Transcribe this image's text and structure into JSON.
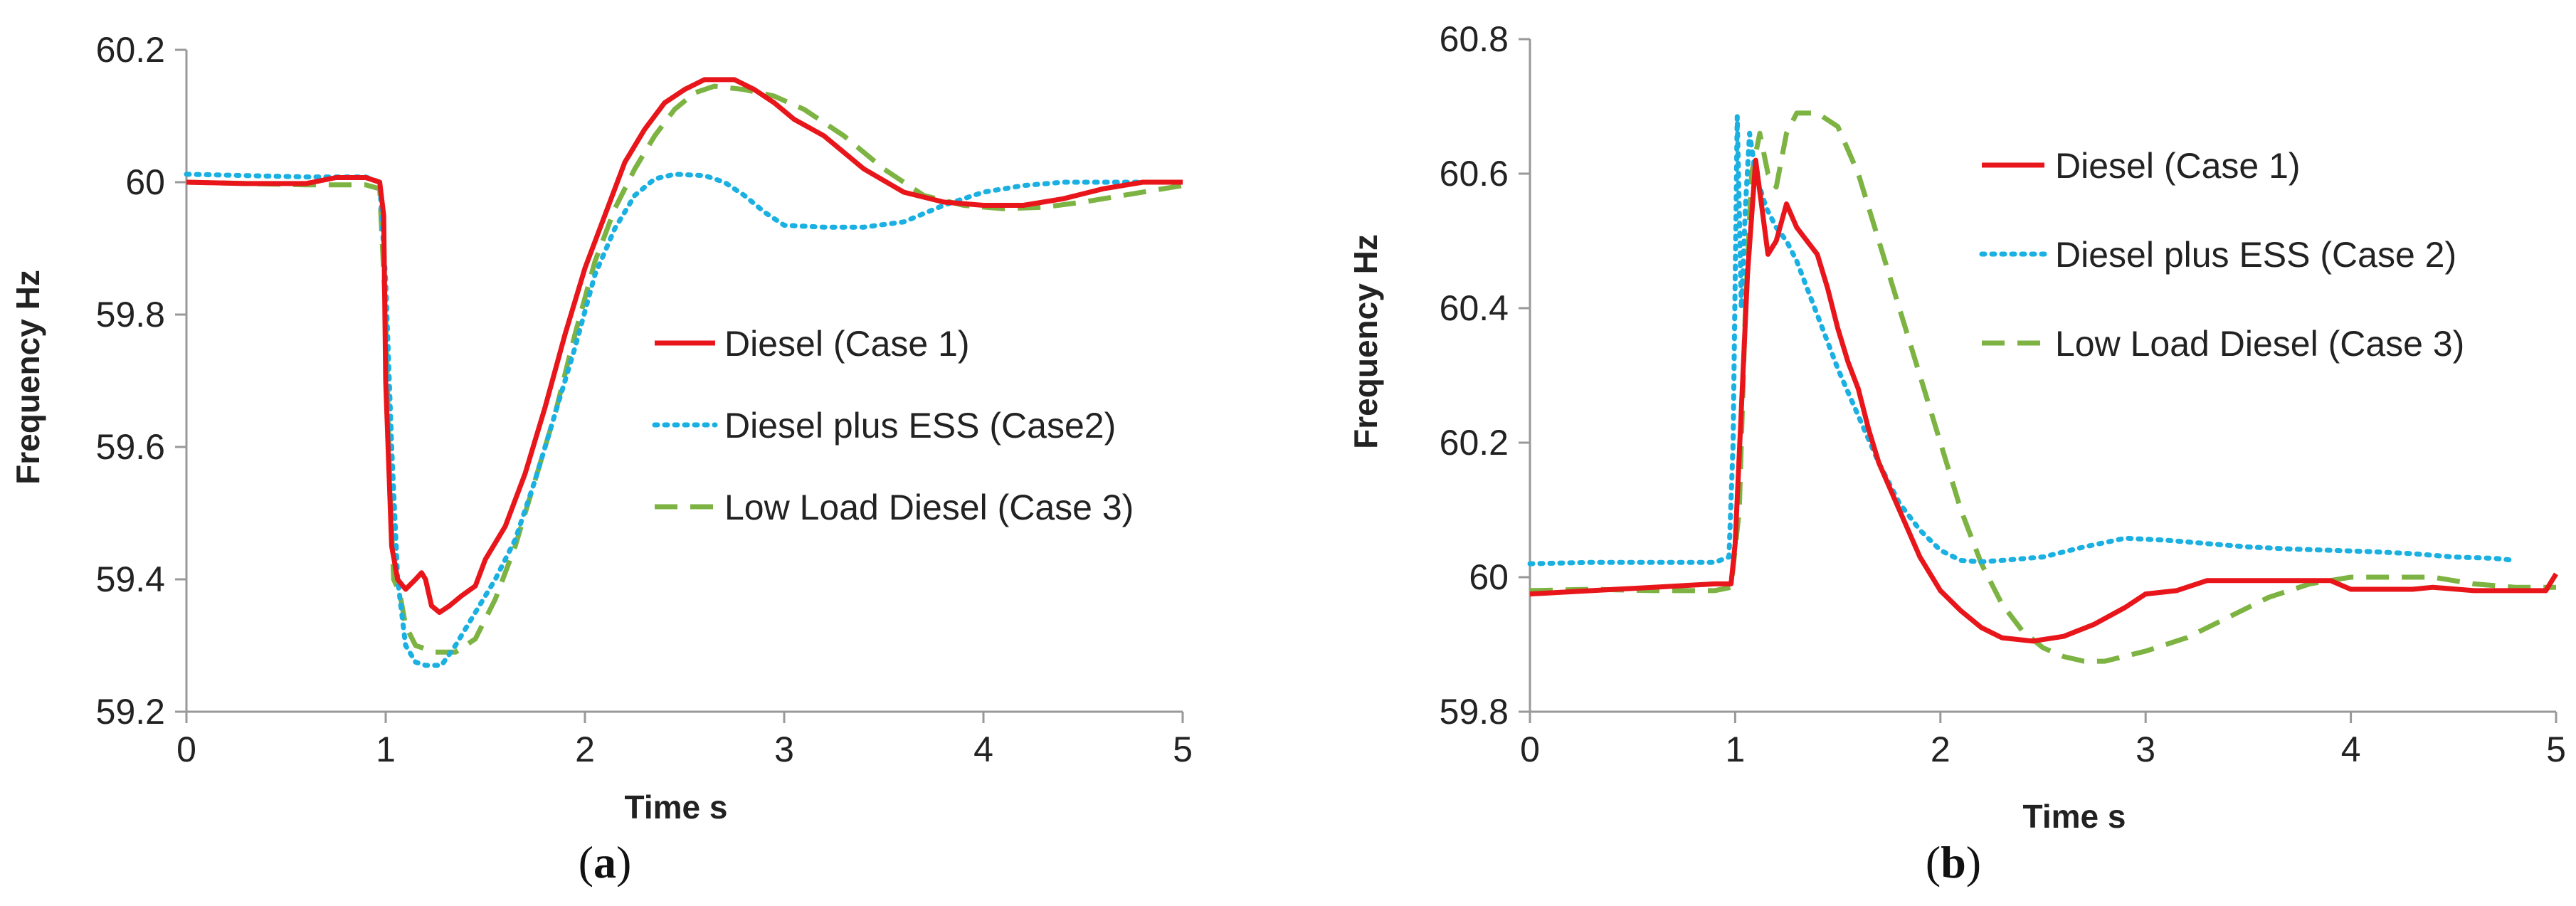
{
  "colors": {
    "case1": "#e8161b",
    "case2": "#1ab0e2",
    "case3": "#7cb342",
    "axis": "#999999"
  },
  "chart_data": [
    {
      "type": "line",
      "panel_label_open": "(",
      "panel_label_letter": "a",
      "panel_label_close": ")",
      "xlabel": "Time s",
      "ylabel": "Frequency Hz",
      "xlim": [
        0,
        5
      ],
      "ylim": [
        59.2,
        60.2
      ],
      "xticks": [
        "0",
        "1",
        "2",
        "3",
        "4",
        "5"
      ],
      "yticks": [
        "59.2",
        "59.4",
        "59.6",
        "59.8",
        "60",
        "60.2"
      ],
      "legend_position": "center-right",
      "series": [
        {
          "name": "Diesel (Case 1)",
          "key": "case1",
          "style": "solid",
          "points": [
            [
              0,
              60.0
            ],
            [
              0.3,
              59.998
            ],
            [
              0.6,
              59.998
            ],
            [
              0.75,
              60.007
            ],
            [
              0.9,
              60.007
            ],
            [
              0.97,
              60.0
            ],
            [
              0.99,
              59.95
            ],
            [
              1.0,
              59.7
            ],
            [
              1.03,
              59.45
            ],
            [
              1.06,
              59.4
            ],
            [
              1.1,
              59.385
            ],
            [
              1.15,
              59.4
            ],
            [
              1.18,
              59.41
            ],
            [
              1.2,
              59.4
            ],
            [
              1.23,
              59.36
            ],
            [
              1.27,
              59.35
            ],
            [
              1.32,
              59.36
            ],
            [
              1.38,
              59.375
            ],
            [
              1.45,
              59.39
            ],
            [
              1.5,
              59.43
            ],
            [
              1.6,
              59.48
            ],
            [
              1.7,
              59.56
            ],
            [
              1.8,
              59.66
            ],
            [
              1.9,
              59.77
            ],
            [
              2.0,
              59.87
            ],
            [
              2.1,
              59.95
            ],
            [
              2.2,
              60.03
            ],
            [
              2.3,
              60.08
            ],
            [
              2.4,
              60.12
            ],
            [
              2.5,
              60.14
            ],
            [
              2.6,
              60.155
            ],
            [
              2.75,
              60.155
            ],
            [
              2.85,
              60.14
            ],
            [
              2.95,
              60.12
            ],
            [
              3.05,
              60.095
            ],
            [
              3.2,
              60.07
            ],
            [
              3.4,
              60.02
            ],
            [
              3.6,
              59.985
            ],
            [
              3.8,
              59.97
            ],
            [
              4.0,
              59.965
            ],
            [
              4.2,
              59.965
            ],
            [
              4.4,
              59.975
            ],
            [
              4.6,
              59.99
            ],
            [
              4.8,
              60.0
            ],
            [
              5.0,
              60.0
            ]
          ]
        },
        {
          "name": "Diesel plus ESS (Case2)",
          "key": "case2",
          "style": "dotted",
          "points": [
            [
              0,
              60.012
            ],
            [
              0.3,
              60.01
            ],
            [
              0.6,
              60.008
            ],
            [
              0.9,
              60.008
            ],
            [
              0.97,
              60.0
            ],
            [
              1.0,
              59.85
            ],
            [
              1.03,
              59.6
            ],
            [
              1.06,
              59.4
            ],
            [
              1.1,
              59.3
            ],
            [
              1.15,
              59.275
            ],
            [
              1.2,
              59.27
            ],
            [
              1.28,
              59.27
            ],
            [
              1.35,
              59.3
            ],
            [
              1.45,
              59.35
            ],
            [
              1.55,
              59.4
            ],
            [
              1.65,
              59.46
            ],
            [
              1.75,
              59.55
            ],
            [
              1.85,
              59.65
            ],
            [
              1.95,
              59.75
            ],
            [
              2.05,
              59.86
            ],
            [
              2.15,
              59.93
            ],
            [
              2.25,
              59.98
            ],
            [
              2.35,
              60.005
            ],
            [
              2.45,
              60.012
            ],
            [
              2.6,
              60.01
            ],
            [
              2.7,
              60.0
            ],
            [
              2.8,
              59.98
            ],
            [
              2.9,
              59.955
            ],
            [
              3.0,
              59.935
            ],
            [
              3.2,
              59.932
            ],
            [
              3.4,
              59.932
            ],
            [
              3.6,
              59.94
            ],
            [
              3.8,
              59.965
            ],
            [
              4.0,
              59.985
            ],
            [
              4.2,
              59.995
            ],
            [
              4.4,
              60.0
            ],
            [
              4.6,
              60.0
            ],
            [
              4.8,
              60.0
            ],
            [
              5.0,
              60.0
            ]
          ]
        },
        {
          "name": "Low Load Diesel (Case 3)",
          "key": "case3",
          "style": "dashed",
          "points": [
            [
              0,
              60.0
            ],
            [
              0.3,
              59.998
            ],
            [
              0.6,
              59.996
            ],
            [
              0.9,
              59.996
            ],
            [
              0.97,
              59.99
            ],
            [
              1.0,
              59.8
            ],
            [
              1.02,
              59.55
            ],
            [
              1.04,
              59.4
            ],
            [
              1.07,
              59.38
            ],
            [
              1.1,
              59.33
            ],
            [
              1.15,
              59.3
            ],
            [
              1.25,
              59.29
            ],
            [
              1.35,
              59.29
            ],
            [
              1.45,
              59.31
            ],
            [
              1.55,
              59.37
            ],
            [
              1.65,
              59.45
            ],
            [
              1.75,
              59.55
            ],
            [
              1.85,
              59.65
            ],
            [
              1.95,
              59.77
            ],
            [
              2.05,
              59.88
            ],
            [
              2.15,
              59.96
            ],
            [
              2.25,
              60.02
            ],
            [
              2.35,
              60.07
            ],
            [
              2.45,
              60.11
            ],
            [
              2.55,
              60.135
            ],
            [
              2.65,
              60.145
            ],
            [
              2.8,
              60.14
            ],
            [
              2.95,
              60.13
            ],
            [
              3.1,
              60.11
            ],
            [
              3.3,
              60.07
            ],
            [
              3.5,
              60.02
            ],
            [
              3.7,
              59.98
            ],
            [
              3.9,
              59.965
            ],
            [
              4.1,
              59.96
            ],
            [
              4.3,
              59.962
            ],
            [
              4.5,
              59.97
            ],
            [
              4.7,
              59.98
            ],
            [
              4.9,
              59.99
            ],
            [
              5.0,
              59.995
            ]
          ]
        }
      ]
    },
    {
      "type": "line",
      "panel_label_open": "(",
      "panel_label_letter": "b",
      "panel_label_close": ")",
      "xlabel": "Time s",
      "ylabel": "Frequency  Hz",
      "xlim": [
        0,
        5
      ],
      "ylim": [
        59.8,
        60.8
      ],
      "xticks": [
        "0",
        "1",
        "2",
        "3",
        "4",
        "5"
      ],
      "yticks": [
        "59.8",
        "60",
        "60.2",
        "60.4",
        "60.6",
        "60.8"
      ],
      "legend_position": "top-right",
      "series": [
        {
          "name": "Diesel (Case 1)",
          "key": "case1",
          "style": "solid",
          "points": [
            [
              0,
              59.975
            ],
            [
              0.3,
              59.98
            ],
            [
              0.6,
              59.985
            ],
            [
              0.9,
              59.99
            ],
            [
              0.98,
              59.99
            ],
            [
              1.0,
              60.05
            ],
            [
              1.03,
              60.25
            ],
            [
              1.06,
              60.45
            ],
            [
              1.1,
              60.62
            ],
            [
              1.13,
              60.55
            ],
            [
              1.16,
              60.48
            ],
            [
              1.2,
              60.5
            ],
            [
              1.25,
              60.555
            ],
            [
              1.3,
              60.52
            ],
            [
              1.35,
              60.5
            ],
            [
              1.4,
              60.48
            ],
            [
              1.45,
              60.43
            ],
            [
              1.5,
              60.37
            ],
            [
              1.55,
              60.32
            ],
            [
              1.6,
              60.28
            ],
            [
              1.65,
              60.22
            ],
            [
              1.7,
              60.17
            ],
            [
              1.8,
              60.1
            ],
            [
              1.9,
              60.03
            ],
            [
              2.0,
              59.98
            ],
            [
              2.1,
              59.95
            ],
            [
              2.2,
              59.925
            ],
            [
              2.3,
              59.91
            ],
            [
              2.45,
              59.905
            ],
            [
              2.6,
              59.912
            ],
            [
              2.75,
              59.93
            ],
            [
              2.9,
              59.955
            ],
            [
              3.0,
              59.975
            ],
            [
              3.15,
              59.98
            ],
            [
              3.3,
              59.995
            ],
            [
              3.5,
              59.995
            ],
            [
              3.7,
              59.995
            ],
            [
              3.9,
              59.995
            ],
            [
              4.0,
              59.982
            ],
            [
              4.3,
              59.982
            ],
            [
              4.4,
              59.985
            ],
            [
              4.6,
              59.98
            ],
            [
              4.8,
              59.98
            ],
            [
              4.95,
              59.98
            ],
            [
              5.0,
              60.005
            ]
          ]
        },
        {
          "name": "Diesel plus ESS (Case 2)",
          "key": "case2",
          "style": "dotted",
          "points": [
            [
              0,
              60.02
            ],
            [
              0.3,
              60.022
            ],
            [
              0.6,
              60.022
            ],
            [
              0.9,
              60.022
            ],
            [
              0.97,
              60.03
            ],
            [
              0.99,
              60.2
            ],
            [
              1.01,
              60.685
            ],
            [
              1.03,
              60.4
            ],
            [
              1.05,
              60.55
            ],
            [
              1.07,
              60.66
            ],
            [
              1.1,
              60.6
            ],
            [
              1.15,
              60.55
            ],
            [
              1.2,
              60.52
            ],
            [
              1.25,
              60.5
            ],
            [
              1.3,
              60.47
            ],
            [
              1.35,
              60.43
            ],
            [
              1.4,
              60.39
            ],
            [
              1.5,
              60.31
            ],
            [
              1.6,
              60.24
            ],
            [
              1.7,
              60.17
            ],
            [
              1.8,
              60.11
            ],
            [
              1.9,
              60.07
            ],
            [
              2.0,
              60.04
            ],
            [
              2.1,
              60.025
            ],
            [
              2.2,
              60.023
            ],
            [
              2.3,
              60.025
            ],
            [
              2.5,
              60.03
            ],
            [
              2.7,
              60.045
            ],
            [
              2.9,
              60.058
            ],
            [
              3.1,
              60.055
            ],
            [
              3.3,
              60.05
            ],
            [
              3.5,
              60.045
            ],
            [
              3.7,
              60.042
            ],
            [
              3.9,
              60.04
            ],
            [
              4.1,
              60.038
            ],
            [
              4.3,
              60.035
            ],
            [
              4.5,
              60.03
            ],
            [
              4.7,
              60.028
            ],
            [
              4.8,
              60.025
            ]
          ]
        },
        {
          "name": "Low Load Diesel (Case 3)",
          "key": "case3",
          "style": "dashed",
          "points": [
            [
              0,
              59.98
            ],
            [
              0.3,
              59.982
            ],
            [
              0.6,
              59.98
            ],
            [
              0.9,
              59.98
            ],
            [
              0.98,
              59.985
            ],
            [
              1.02,
              60.1
            ],
            [
              1.05,
              60.4
            ],
            [
              1.08,
              60.6
            ],
            [
              1.12,
              60.66
            ],
            [
              1.16,
              60.6
            ],
            [
              1.2,
              60.58
            ],
            [
              1.25,
              60.66
            ],
            [
              1.3,
              60.69
            ],
            [
              1.4,
              60.69
            ],
            [
              1.5,
              60.67
            ],
            [
              1.6,
              60.6
            ],
            [
              1.7,
              60.5
            ],
            [
              1.8,
              60.4
            ],
            [
              1.9,
              60.3
            ],
            [
              2.0,
              60.2
            ],
            [
              2.1,
              60.1
            ],
            [
              2.2,
              60.02
            ],
            [
              2.3,
              59.96
            ],
            [
              2.4,
              59.92
            ],
            [
              2.5,
              59.895
            ],
            [
              2.6,
              59.882
            ],
            [
              2.7,
              59.875
            ],
            [
              2.8,
              59.875
            ],
            [
              3.0,
              59.89
            ],
            [
              3.2,
              59.91
            ],
            [
              3.4,
              59.94
            ],
            [
              3.6,
              59.97
            ],
            [
              3.8,
              59.99
            ],
            [
              4.0,
              60.0
            ],
            [
              4.2,
              60.0
            ],
            [
              4.4,
              60.0
            ],
            [
              4.6,
              59.99
            ],
            [
              4.8,
              59.985
            ],
            [
              5.0,
              59.985
            ]
          ]
        }
      ]
    }
  ]
}
